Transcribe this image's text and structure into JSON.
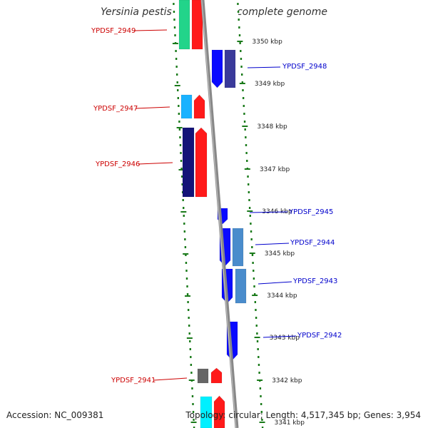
{
  "title": "Yersinia pestis Pestoides F, complete genome",
  "accession_text": "Accession: NC_009381",
  "topology_text": "Topology: circular; Length: 4,517,345 bp; Genes: 3,954",
  "colors": {
    "left_label": "#cc0000",
    "right_label": "#0000cc",
    "tick": "#1a7a1a",
    "backbone": "#888888"
  },
  "scale_ticks": [
    {
      "label": "3350 kbp",
      "pos": 3350
    },
    {
      "label": "3349 kbp",
      "pos": 3349
    },
    {
      "label": "3348 kbp",
      "pos": 3348
    },
    {
      "label": "3347 kbp",
      "pos": 3347
    },
    {
      "label": "3346 kbp",
      "pos": 3346
    },
    {
      "label": "3345 kbp",
      "pos": 3345
    },
    {
      "label": "3344 kbp",
      "pos": 3344
    },
    {
      "label": "3343 kbp",
      "pos": 3343
    },
    {
      "label": "3342 kbp",
      "pos": 3342
    },
    {
      "label": "3341 kbp",
      "pos": 3341
    }
  ],
  "genes": [
    {
      "name": "YPDSF_2949",
      "side": "left"
    },
    {
      "name": "YPDSF_2948",
      "side": "right"
    },
    {
      "name": "YPDSF_2947",
      "side": "left"
    },
    {
      "name": "YPDSF_2946",
      "side": "left"
    },
    {
      "name": "YPDSF_2945",
      "side": "right"
    },
    {
      "name": "YPDSF_2944",
      "side": "right"
    },
    {
      "name": "YPDSF_2943",
      "side": "right"
    },
    {
      "name": "YPDSF_2942",
      "side": "right"
    },
    {
      "name": "YPDSF_2941",
      "side": "left"
    }
  ]
}
